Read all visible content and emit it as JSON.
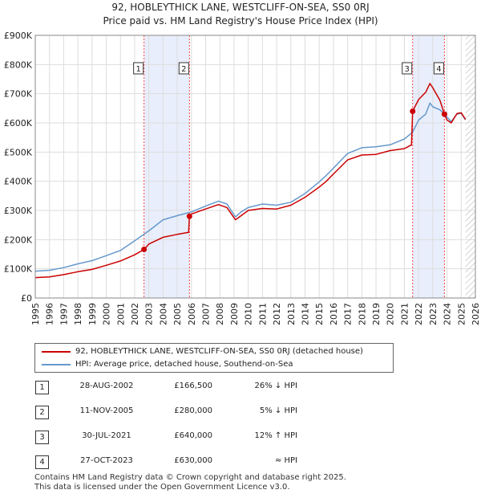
{
  "title_line1": "92, HOBLEYTHICK LANE, WESTCLIFF-ON-SEA, SS0 0RJ",
  "title_line2": "Price paid vs. HM Land Registry's House Price Index (HPI)",
  "colors": {
    "property": "#cc0000",
    "hpi": "#6699cc",
    "shade": "#e8eefb",
    "marker_line": "#ff4444"
  },
  "legend": {
    "property": "92, HOBLEYTHICK LANE, WESTCLIFF-ON-SEA, SS0 0RJ (detached house)",
    "hpi": "HPI: Average price, detached house, Southend-on-Sea"
  },
  "sales": [
    {
      "num": "1",
      "date": "28-AUG-2002",
      "price": "£166,500",
      "hpi": "26% ↓ HPI"
    },
    {
      "num": "2",
      "date": "11-NOV-2005",
      "price": "£280,000",
      "hpi": "5% ↓ HPI"
    },
    {
      "num": "3",
      "date": "30-JUL-2021",
      "price": "£640,000",
      "hpi": "12% ↑ HPI"
    },
    {
      "num": "4",
      "date": "27-OCT-2023",
      "price": "£630,000",
      "hpi": "≈ HPI"
    }
  ],
  "footer_line1": "Contains HM Land Registry data © Crown copyright and database right 2025.",
  "footer_line2": "This data is licensed under the Open Government Licence v3.0.",
  "chart_data": {
    "type": "line",
    "title": "Price paid vs. HM Land Registry's House Price Index (HPI)",
    "xlabel": "",
    "ylabel": "",
    "xlim": [
      1995,
      2026
    ],
    "ylim": [
      0,
      900000
    ],
    "y_ticks": [
      0,
      100000,
      200000,
      300000,
      400000,
      500000,
      600000,
      700000,
      800000,
      900000
    ],
    "y_tick_labels": [
      "£0",
      "£100K",
      "£200K",
      "£300K",
      "£400K",
      "£500K",
      "£600K",
      "£700K",
      "£800K",
      "£900K"
    ],
    "x_ticks": [
      1995,
      1996,
      1997,
      1998,
      1999,
      2000,
      2001,
      2002,
      2003,
      2004,
      2005,
      2006,
      2007,
      2008,
      2009,
      2010,
      2011,
      2012,
      2013,
      2014,
      2015,
      2016,
      2017,
      2018,
      2019,
      2020,
      2021,
      2022,
      2023,
      2024,
      2025,
      2026
    ],
    "shaded_periods": [
      [
        2002.66,
        2005.86
      ],
      [
        2021.58,
        2023.82
      ]
    ],
    "hatched_from": 2025.3,
    "sale_markers": [
      {
        "label": "1",
        "x": 2002.66,
        "y": 166500
      },
      {
        "label": "2",
        "x": 2005.86,
        "y": 280000
      },
      {
        "label": "3",
        "x": 2021.58,
        "y": 640000
      },
      {
        "label": "4",
        "x": 2023.82,
        "y": 630000
      }
    ],
    "series": [
      {
        "name": "92, HOBLEYTHICK LANE, WESTCLIFF-ON-SEA, SS0 0RJ (detached house)",
        "x": [
          1995,
          1996,
          1997,
          1998,
          1999,
          2000,
          2001,
          2002,
          2002.66,
          2002.7,
          2003,
          2004,
          2005,
          2005.8,
          2005.86,
          2006,
          2007,
          2007.9,
          2008.5,
          2009.1,
          2009.5,
          2010,
          2011,
          2012,
          2013,
          2014,
          2015,
          2015.5,
          2016,
          2017,
          2018,
          2019,
          2020,
          2021,
          2021.5,
          2021.58,
          2022,
          2022.5,
          2022.8,
          2023,
          2023.5,
          2023.82,
          2024,
          2024.3,
          2024.7,
          2025,
          2025.3
        ],
        "values": [
          70000,
          72000,
          80000,
          90000,
          98000,
          112000,
          127000,
          148000,
          166500,
          168000,
          185000,
          208000,
          218000,
          225000,
          280000,
          288000,
          305000,
          320000,
          310000,
          268000,
          282000,
          300000,
          307000,
          305000,
          318000,
          345000,
          380000,
          400000,
          425000,
          473000,
          490000,
          492000,
          505000,
          512000,
          525000,
          640000,
          680000,
          705000,
          735000,
          720000,
          678000,
          630000,
          610000,
          600000,
          632000,
          635000,
          612000
        ]
      },
      {
        "name": "HPI: Average price, detached house, Southend-on-Sea",
        "x": [
          1995,
          1996,
          1997,
          1998,
          1999,
          2000,
          2001,
          2002,
          2003,
          2004,
          2005,
          2006,
          2007,
          2007.9,
          2008.5,
          2009.1,
          2009.5,
          2010,
          2011,
          2012,
          2013,
          2014,
          2015,
          2015.5,
          2016,
          2017,
          2018,
          2019,
          2020,
          2021,
          2021.58,
          2022,
          2022.5,
          2022.8,
          2023,
          2023.5,
          2023.82,
          2024,
          2024.3,
          2024.7,
          2025,
          2025.3
        ],
        "values": [
          92000,
          95000,
          104000,
          117000,
          128000,
          145000,
          163000,
          196000,
          230000,
          268000,
          282000,
          295000,
          315000,
          332000,
          322000,
          278000,
          295000,
          310000,
          322000,
          318000,
          328000,
          358000,
          398000,
          420000,
          445000,
          495000,
          515000,
          518000,
          525000,
          545000,
          568000,
          610000,
          630000,
          668000,
          655000,
          645000,
          630000,
          620000,
          605000,
          630000,
          633000,
          610000
        ]
      }
    ]
  }
}
